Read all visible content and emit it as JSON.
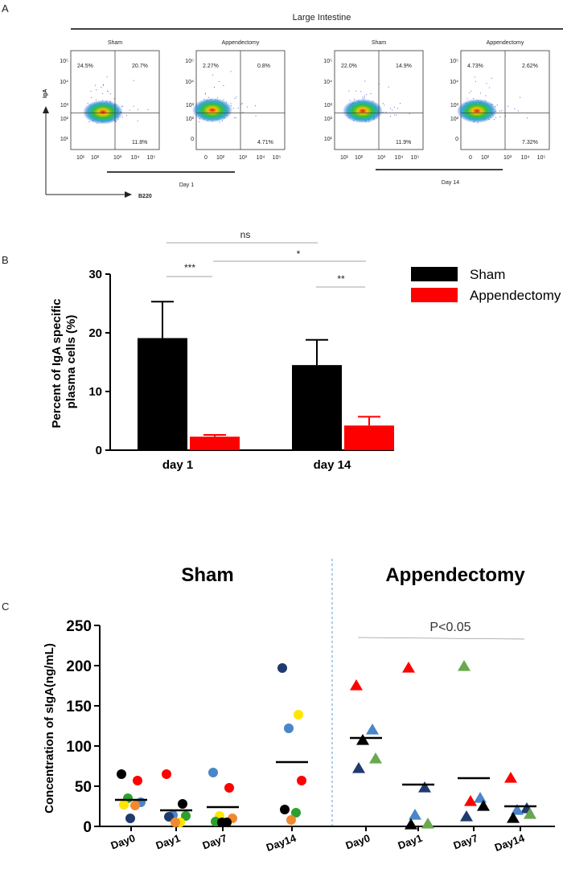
{
  "panel_a": {
    "label": "A",
    "title": "Large Intestine",
    "y_label": "IgA",
    "x_label": "B220",
    "day1_label": "Day 1",
    "day14_label": "Day 14",
    "plots": [
      {
        "title": "Sham",
        "q_ul": "24.5%",
        "q_ur": "20.7%",
        "q_lr": "11.8%",
        "y_ticks": [
          "10⁵",
          "10⁴",
          "10³",
          "10²",
          "10¹"
        ],
        "x_ticks": [
          "10¹",
          "10²",
          "10³",
          "10⁴",
          "10⁵"
        ]
      },
      {
        "title": "Appendectomy",
        "q_ul": "2.27%",
        "q_ur": "0.8%",
        "q_lr": "4.71%",
        "y_ticks": [
          "10⁵",
          "10⁴",
          "10³",
          "10²",
          "0"
        ],
        "x_ticks": [
          "0",
          "10²",
          "10³",
          "10⁴",
          "10⁵"
        ]
      },
      {
        "title": "Sham",
        "q_ul": "22.0%",
        "q_ur": "14.9%",
        "q_lr": "11.9%",
        "y_ticks": [
          "10⁵",
          "10⁴",
          "10³",
          "10²",
          "10¹"
        ],
        "x_ticks": [
          "10¹",
          "10²",
          "10³",
          "10⁴",
          "10⁵"
        ]
      },
      {
        "title": "Appendectomy",
        "q_ul": "4.73%",
        "q_ur": "2.62%",
        "q_lr": "7.32%",
        "y_ticks": [
          "10⁵",
          "10⁴",
          "10³",
          "10²",
          "0"
        ],
        "x_ticks": [
          "0",
          "10²",
          "10³",
          "10⁴",
          "10⁵"
        ]
      }
    ]
  },
  "panel_b": {
    "label": "B",
    "sig": {
      "ns": "ns",
      "s1": "***",
      "s2": "*",
      "s3": "**"
    }
  },
  "panel_c": {
    "label": "C",
    "group_left": "Sham",
    "group_right": "Appendectomy",
    "p_text": "P<0.05"
  },
  "colors": {
    "sham": "#000000",
    "appendectomy": "#ff0000",
    "divider": "#5b9bd5"
  },
  "chart_data": [
    {
      "type": "bar",
      "categories": [
        "day 1",
        "day 14"
      ],
      "series": [
        {
          "name": "Sham",
          "values": [
            19.1,
            14.5
          ],
          "errors": [
            6.2,
            4.3
          ]
        },
        {
          "name": "Appendectomy",
          "values": [
            2.3,
            4.2
          ],
          "errors": [
            0.3,
            1.5
          ]
        }
      ],
      "ylabel": "Percent of IgA specific plasma cells (%)",
      "ylim": [
        0,
        30
      ],
      "yticks": [
        "0",
        "10",
        "20",
        "30"
      ],
      "legend": "right"
    },
    {
      "type": "scatter",
      "ylabel": "Concentration of sIgA(ng/mL)",
      "ylim": [
        0,
        250
      ],
      "yticks": [
        "0",
        "50",
        "100",
        "150",
        "200",
        "250"
      ],
      "categories": [
        "Day0",
        "Day1",
        "Day7",
        "Day14",
        "Day0",
        "Day1",
        "Day7",
        "Day14"
      ],
      "groups": [
        {
          "name": "Sham",
          "marker": "circle",
          "cols": [
            {
              "mean": 33,
              "points": [
                {
                  "v": 65,
                  "c": "#000000"
                },
                {
                  "v": 57,
                  "c": "#ff0000"
                },
                {
                  "v": 35,
                  "c": "#2ca02c"
                },
                {
                  "v": 30,
                  "c": "#4a86c8"
                },
                {
                  "v": 27,
                  "c": "#ffe600"
                },
                {
                  "v": 26,
                  "c": "#f08a30"
                },
                {
                  "v": 10,
                  "c": "#1f3a6e"
                }
              ]
            },
            {
              "mean": 20,
              "points": [
                {
                  "v": 65,
                  "c": "#ff0000"
                },
                {
                  "v": 28,
                  "c": "#000000"
                },
                {
                  "v": 14,
                  "c": "#4a86c8"
                },
                {
                  "v": 13,
                  "c": "#2ca02c"
                },
                {
                  "v": 12,
                  "c": "#1f3a6e"
                },
                {
                  "v": 5,
                  "c": "#ffe600"
                },
                {
                  "v": 5,
                  "c": "#f08a30"
                }
              ]
            },
            {
              "mean": 24,
              "points": [
                {
                  "v": 67,
                  "c": "#4a86c8"
                },
                {
                  "v": 48,
                  "c": "#ff0000"
                },
                {
                  "v": 13,
                  "c": "#ffe600"
                },
                {
                  "v": 10,
                  "c": "#f08a30"
                },
                {
                  "v": 6,
                  "c": "#2ca02c"
                },
                {
                  "v": 5,
                  "c": "#000000"
                },
                {
                  "v": 5,
                  "c": "#000000"
                }
              ]
            },
            {
              "mean": 80,
              "points": [
                {
                  "v": 197,
                  "c": "#1f3a6e"
                },
                {
                  "v": 139,
                  "c": "#ffe600"
                },
                {
                  "v": 122,
                  "c": "#4a86c8"
                },
                {
                  "v": 57,
                  "c": "#ff0000"
                },
                {
                  "v": 21,
                  "c": "#000000"
                },
                {
                  "v": 17,
                  "c": "#2ca02c"
                },
                {
                  "v": 8,
                  "c": "#f08a30"
                }
              ]
            }
          ]
        },
        {
          "name": "Appendectomy",
          "marker": "triangle",
          "cols": [
            {
              "mean": 110,
              "points": [
                {
                  "v": 175,
                  "c": "#ff0000"
                },
                {
                  "v": 120,
                  "c": "#4a86c8"
                },
                {
                  "v": 107,
                  "c": "#000000"
                },
                {
                  "v": 84,
                  "c": "#6aa84f"
                },
                {
                  "v": 72,
                  "c": "#1f3a6e"
                }
              ]
            },
            {
              "mean": 52,
              "points": [
                {
                  "v": 197,
                  "c": "#ff0000"
                },
                {
                  "v": 48,
                  "c": "#1f3a6e"
                },
                {
                  "v": 14,
                  "c": "#4a86c8"
                },
                {
                  "v": 3,
                  "c": "#6aa84f"
                },
                {
                  "v": 2,
                  "c": "#000000"
                }
              ]
            },
            {
              "mean": 60,
              "points": [
                {
                  "v": 199,
                  "c": "#6aa84f"
                },
                {
                  "v": 35,
                  "c": "#4a86c8"
                },
                {
                  "v": 31,
                  "c": "#ff0000"
                },
                {
                  "v": 25,
                  "c": "#000000"
                },
                {
                  "v": 12,
                  "c": "#1f3a6e"
                }
              ]
            },
            {
              "mean": 25,
              "points": [
                {
                  "v": 60,
                  "c": "#ff0000"
                },
                {
                  "v": 22,
                  "c": "#1f3a6e"
                },
                {
                  "v": 20,
                  "c": "#4a86c8"
                },
                {
                  "v": 15,
                  "c": "#6aa84f"
                },
                {
                  "v": 10,
                  "c": "#000000"
                }
              ]
            }
          ]
        }
      ]
    }
  ]
}
